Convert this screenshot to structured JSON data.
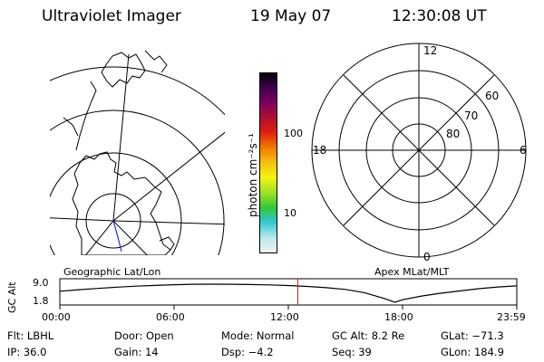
{
  "header": {
    "title": "Ultraviolet Imager",
    "date": "19 May 07",
    "time": "12:30:08 UT"
  },
  "left_panel": {
    "caption": "Geographic Lat/Lon"
  },
  "right_panel": {
    "caption": "Apex MLat/MLT",
    "mlt_labels": [
      "12",
      "18",
      "6",
      "0"
    ],
    "mlat_labels": [
      "60",
      "70",
      "80"
    ]
  },
  "colorbar": {
    "unit_label": "photon cm⁻²s⁻¹",
    "ticks": [
      "100",
      "10"
    ],
    "colors": [
      "#e8f4f4",
      "#bfe8ec",
      "#30c8d0",
      "#34c838",
      "#9ce028",
      "#f4f410",
      "#f4c010",
      "#f08000",
      "#e02010",
      "#b01030",
      "#800060",
      "#400050",
      "#000000"
    ]
  },
  "chart_data": {
    "type": "line",
    "title": "",
    "ylabel": "GC Alt",
    "yticks": [
      "9.0",
      "1.8"
    ],
    "ylim": [
      1.8,
      9.0
    ],
    "xlim_hours": [
      0,
      24
    ],
    "xtick_labels": [
      "00:00",
      "06:00",
      "12:00",
      "18:00",
      "23:59"
    ],
    "series": [
      {
        "x_hours": [
          0,
          1,
          2,
          3,
          4,
          5,
          6,
          7,
          8,
          9,
          10,
          11,
          12,
          13,
          14,
          15,
          16,
          17,
          17.6,
          18,
          19,
          20,
          21,
          22,
          23,
          24
        ],
        "values": [
          6.2,
          6.8,
          7.3,
          7.8,
          8.2,
          8.5,
          8.8,
          8.95,
          9.0,
          8.95,
          8.85,
          8.7,
          8.45,
          8.1,
          7.6,
          6.9,
          5.6,
          3.4,
          1.8,
          2.8,
          4.3,
          5.4,
          6.3,
          7.2,
          7.9,
          8.3
        ]
      }
    ],
    "current_time_hours": 12.5,
    "current_time_color": "#d02020"
  },
  "footer": {
    "flt": "Flt: LBHL",
    "door": "Door: Open",
    "mode": "Mode: Normal",
    "gcalt": "GC Alt: 8.2 Re",
    "glat": "GLat: −71.3",
    "ip": "IP: 36.0",
    "gain": "Gain: 14",
    "dsp": "Dsp:   −4.2",
    "seq": "Seq: 39",
    "glon": "GLon: 184.9"
  }
}
